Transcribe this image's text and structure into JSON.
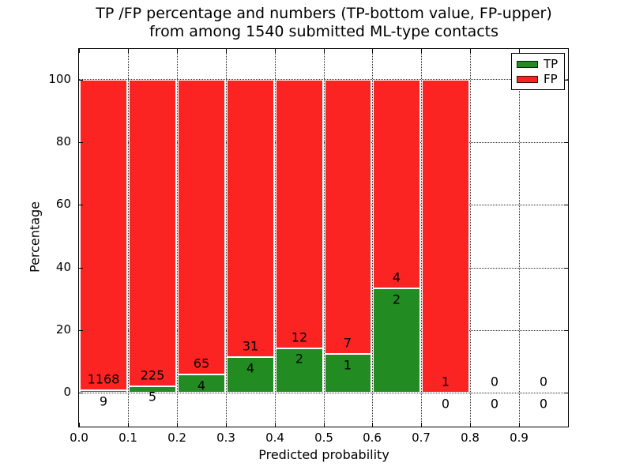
{
  "figure": {
    "title_line1": "TP /FP percentage and numbers (TP-bottom value, FP-upper)",
    "title_line2": "from among 1540 submitted ML-type contacts"
  },
  "chart_data": {
    "type": "bar",
    "stacked": true,
    "title": "TP /FP percentage and numbers (TP-bottom value, FP-upper)\nfrom among 1540 submitted ML-type contacts",
    "xlabel": "Predicted probability",
    "ylabel": "Percentage",
    "total_contacts": 1540,
    "bins": {
      "starts": [
        0.0,
        0.1,
        0.2,
        0.3,
        0.4,
        0.5,
        0.6,
        0.7,
        0.8,
        0.9
      ],
      "width": 0.1
    },
    "series": [
      {
        "name": "TP",
        "color": "#228c22",
        "counts": [
          9,
          5,
          4,
          4,
          2,
          1,
          2,
          0,
          0,
          0
        ]
      },
      {
        "name": "FP",
        "color": "#fc2323",
        "counts": [
          1168,
          225,
          65,
          31,
          12,
          7,
          4,
          1,
          0,
          0
        ]
      }
    ],
    "tp_percent_of_bin": [
      0.76,
      2.17,
      5.8,
      11.43,
      14.29,
      12.5,
      33.33,
      0,
      null,
      null
    ],
    "bar_total_percent": 100,
    "x_tick_labels": [
      "0.0",
      "0.1",
      "0.2",
      "0.3",
      "0.4",
      "0.5",
      "0.6",
      "0.7",
      "0.8",
      "0.9"
    ],
    "y_tick_values": [
      0,
      20,
      40,
      60,
      80,
      100
    ],
    "xlim": [
      0,
      1.0
    ],
    "ylim": [
      -10.8,
      109.8
    ],
    "grid": "dotted",
    "legend": {
      "position": "upper-right",
      "entries": [
        {
          "label": "TP",
          "color": "#228c22"
        },
        {
          "label": "FP",
          "color": "#fc2323"
        }
      ]
    }
  }
}
